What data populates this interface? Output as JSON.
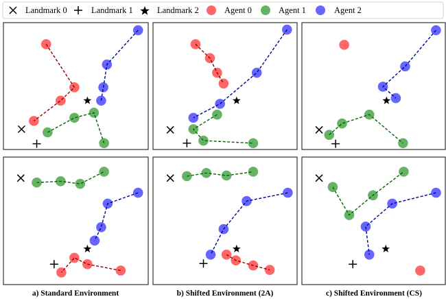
{
  "legend": {
    "items": [
      {
        "label": "Landmark 0",
        "marker": "x",
        "color": "#000000"
      },
      {
        "label": "Landmark 1",
        "marker": "+",
        "color": "#000000"
      },
      {
        "label": "Landmark 2",
        "marker": "star",
        "color": "#000000"
      },
      {
        "label": "Agent 0",
        "marker": "circle",
        "color": "#ff6666"
      },
      {
        "label": "Agent 1",
        "marker": "circle",
        "color": "#66b366"
      },
      {
        "label": "Agent 2",
        "marker": "circle",
        "color": "#6666ff"
      }
    ],
    "placement": "top"
  },
  "colors": {
    "agent_fill": [
      "#ff6666",
      "#66b366",
      "#6666ff"
    ],
    "agent_line": [
      "#8b0000",
      "#006400",
      "#00008b"
    ],
    "landmark": "#000000"
  },
  "captions": [
    "a) Standard Environment",
    "b) Shifted Environment (2A)",
    "c) Shifted Environment (CS)"
  ],
  "chart_data": {
    "type": "scatter",
    "grid": false,
    "xlim": [
      -1,
      1
    ],
    "ylim": [
      -1,
      1
    ],
    "panels": [
      {
        "row": 0,
        "col": 0,
        "landmarks": [
          [
            -0.75,
            -0.68
          ],
          [
            -0.54,
            -0.91
          ],
          [
            0.16,
            -0.23
          ]
        ],
        "agents": [
          [
            [
              -0.41,
              0.66
            ],
            [
              -0.02,
              -0.02
            ],
            [
              -0.21,
              -0.23
            ],
            [
              -0.58,
              -0.55
            ]
          ],
          [
            [
              -0.39,
              -0.73
            ],
            [
              -0.02,
              -0.5
            ],
            [
              0.25,
              -0.42
            ],
            [
              0.39,
              -0.9
            ]
          ],
          [
            [
              0.86,
              0.88
            ],
            [
              0.43,
              0.34
            ],
            [
              0.38,
              -0.02
            ],
            [
              0.35,
              -0.23
            ]
          ]
        ]
      },
      {
        "row": 0,
        "col": 1,
        "landmarks": [
          [
            -0.76,
            -0.69
          ],
          [
            -0.53,
            -0.9
          ],
          [
            0.16,
            -0.23
          ]
        ],
        "agents": [
          [
            [
              -0.41,
              0.66
            ],
            [
              -0.21,
              0.44
            ],
            [
              -0.11,
              0.21
            ],
            [
              -0.02,
              0.04
            ]
          ],
          [
            [
              -0.11,
              -0.45
            ],
            [
              -0.44,
              -0.68
            ],
            [
              -0.3,
              -0.86
            ],
            [
              0.39,
              -0.9
            ]
          ],
          [
            [
              0.86,
              0.89
            ],
            [
              0.44,
              0.21
            ],
            [
              -0.07,
              -0.28
            ],
            [
              -0.44,
              -0.5
            ]
          ]
        ]
      },
      {
        "row": 0,
        "col": 2,
        "landmarks": [
          [
            -0.76,
            -0.69
          ],
          [
            -0.53,
            -0.91
          ],
          [
            0.18,
            -0.23
          ]
        ],
        "agents": [
          [
            [
              -0.41,
              0.65
            ]
          ],
          [
            [
              -0.62,
              -0.77
            ],
            [
              -0.44,
              -0.59
            ],
            [
              -0.06,
              -0.45
            ],
            [
              0.41,
              -0.9
            ]
          ],
          [
            [
              0.87,
              0.88
            ],
            [
              0.44,
              0.31
            ],
            [
              0.13,
              -0.01
            ],
            [
              0.31,
              -0.19
            ]
          ]
        ]
      },
      {
        "row": 1,
        "col": 0,
        "landmarks": [
          [
            -0.76,
            0.67
          ],
          [
            -0.3,
            -0.68
          ],
          [
            0.16,
            -0.44
          ]
        ],
        "agents": [
          [
            [
              0.62,
              -0.78
            ],
            [
              0.16,
              -0.68
            ],
            [
              -0.02,
              -0.58
            ],
            [
              -0.2,
              -0.81
            ]
          ],
          [
            [
              -0.54,
              0.6
            ],
            [
              -0.21,
              0.62
            ],
            [
              0.06,
              0.58
            ],
            [
              0.39,
              0.77
            ]
          ],
          [
            [
              0.86,
              0.44
            ],
            [
              0.44,
              0.27
            ],
            [
              0.35,
              -0.1
            ],
            [
              0.26,
              -0.31
            ]
          ]
        ]
      },
      {
        "row": 1,
        "col": 1,
        "landmarks": [
          [
            -0.76,
            0.67
          ],
          [
            -0.3,
            -0.67
          ],
          [
            0.16,
            -0.44
          ]
        ],
        "agents": [
          [
            [
              0.02,
              -0.53
            ],
            [
              0.15,
              -0.62
            ],
            [
              0.39,
              -0.7
            ],
            [
              0.62,
              -0.77
            ]
          ],
          [
            [
              -0.53,
              0.7
            ],
            [
              -0.26,
              0.75
            ],
            [
              0.02,
              0.71
            ],
            [
              0.39,
              0.77
            ]
          ],
          [
            [
              0.87,
              0.44
            ],
            [
              0.3,
              0.31
            ],
            [
              -0.02,
              -0.13
            ],
            [
              -0.2,
              -0.53
            ]
          ]
        ]
      },
      {
        "row": 1,
        "col": 2,
        "landmarks": [
          [
            -0.76,
            0.67
          ],
          [
            -0.29,
            -0.68
          ],
          [
            0.17,
            -0.44
          ]
        ],
        "agents": [
          [
            [
              0.65,
              -0.78
            ]
          ],
          [
            [
              -0.57,
              0.53
            ],
            [
              -0.34,
              0.09
            ],
            [
              -0.01,
              0.4
            ],
            [
              0.42,
              0.77
            ]
          ],
          [
            [
              0.87,
              0.44
            ],
            [
              0.26,
              0.27
            ],
            [
              -0.11,
              -0.09
            ],
            [
              -0.06,
              -0.53
            ]
          ]
        ]
      }
    ]
  }
}
